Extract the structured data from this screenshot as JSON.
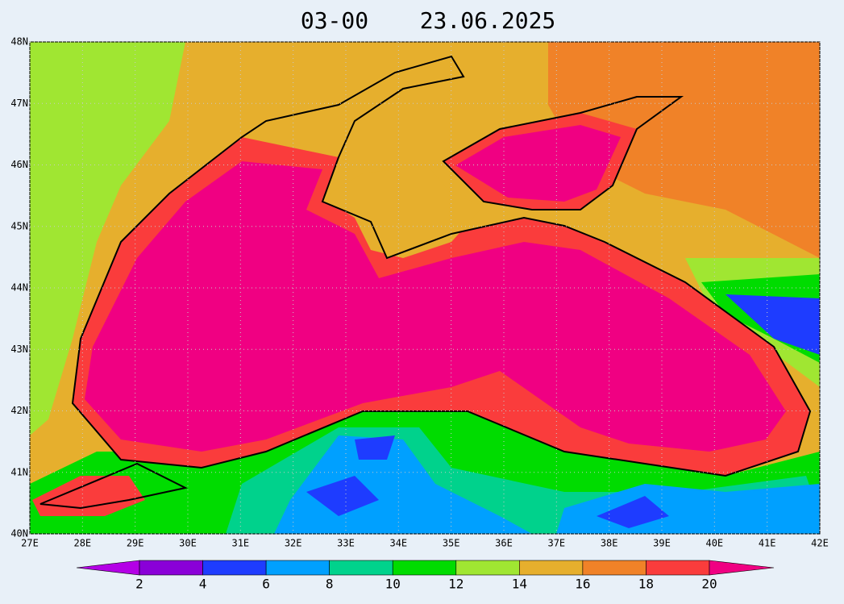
{
  "header": {
    "time": "03-00",
    "date": "23.06.2025"
  },
  "map": {
    "lonlim": [
      27,
      42
    ],
    "latlim": [
      40,
      48
    ],
    "lon_ticks": [
      {
        "value": 27,
        "label": "27E"
      },
      {
        "value": 28,
        "label": "28E"
      },
      {
        "value": 29,
        "label": "29E"
      },
      {
        "value": 30,
        "label": "30E"
      },
      {
        "value": 31,
        "label": "31E"
      },
      {
        "value": 32,
        "label": "32E"
      },
      {
        "value": 33,
        "label": "33E"
      },
      {
        "value": 34,
        "label": "34E"
      },
      {
        "value": 35,
        "label": "35E"
      },
      {
        "value": 36,
        "label": "36E"
      },
      {
        "value": 37,
        "label": "37E"
      },
      {
        "value": 38,
        "label": "38E"
      },
      {
        "value": 39,
        "label": "39E"
      },
      {
        "value": 40,
        "label": "40E"
      },
      {
        "value": 41,
        "label": "41E"
      },
      {
        "value": 42,
        "label": "42E"
      }
    ],
    "lat_ticks": [
      {
        "value": 40,
        "label": "40N"
      },
      {
        "value": 41,
        "label": "41N"
      },
      {
        "value": 42,
        "label": "42N"
      },
      {
        "value": 43,
        "label": "43N"
      },
      {
        "value": 44,
        "label": "44N"
      },
      {
        "value": 45,
        "label": "45N"
      },
      {
        "value": 46,
        "label": "46N"
      },
      {
        "value": 47,
        "label": "47N"
      },
      {
        "value": 48,
        "label": "48N"
      }
    ]
  },
  "colorbar": {
    "levels": [
      2,
      4,
      6,
      8,
      10,
      12,
      14,
      16,
      18,
      20
    ],
    "colors": [
      "#b400e6",
      "#8a00d8",
      "#1e3cff",
      "#00a0ff",
      "#00d28c",
      "#00dc00",
      "#a0e632",
      "#e6af2d",
      "#f08228",
      "#fa3c3c",
      "#f00082"
    ]
  }
}
